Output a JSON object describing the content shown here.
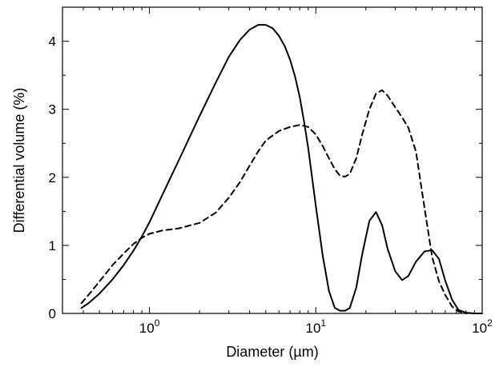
{
  "chart_data": {
    "type": "line",
    "title": "",
    "xlabel": "Diameter (µm)",
    "ylabel": "Differential volume (%)",
    "xscale": "log",
    "xlim": [
      0.3,
      100
    ],
    "ylim": [
      0,
      4.5
    ],
    "grid": false,
    "legend": "none",
    "xticks": [
      {
        "base": "10",
        "exp": "0",
        "value": 1
      },
      {
        "base": "10",
        "exp": "1",
        "value": 10
      },
      {
        "base": "10",
        "exp": "2",
        "value": 100
      }
    ],
    "yticks": [
      {
        "label": "0",
        "value": 0
      },
      {
        "label": "1",
        "value": 1
      },
      {
        "label": "2",
        "value": 2
      },
      {
        "label": "3",
        "value": 3
      },
      {
        "label": "4",
        "value": 4
      }
    ],
    "series": [
      {
        "style": "solid",
        "color": "#000000",
        "x": [
          0.39,
          0.43,
          0.5,
          0.6,
          0.7,
          0.8,
          0.9,
          1.0,
          1.2,
          1.5,
          2.0,
          2.5,
          3.0,
          3.5,
          4.0,
          4.5,
          5.0,
          5.5,
          6.0,
          6.5,
          7.0,
          7.5,
          8.0,
          8.5,
          9.0,
          10.0,
          11.0,
          12.0,
          13.0,
          14.0,
          15.0,
          16.0,
          17.5,
          19.0,
          21.0,
          23.0,
          25.0,
          27.0,
          30.0,
          33.0,
          36.0,
          40.0,
          45.0,
          50.0,
          55.0,
          60.0,
          66.0,
          72.0,
          80.0,
          90.0,
          100.0
        ],
        "y": [
          0.08,
          0.15,
          0.29,
          0.5,
          0.71,
          0.92,
          1.13,
          1.34,
          1.75,
          2.25,
          2.9,
          3.39,
          3.77,
          4.02,
          4.17,
          4.24,
          4.24,
          4.19,
          4.08,
          3.93,
          3.73,
          3.48,
          3.18,
          2.82,
          2.43,
          1.58,
          0.85,
          0.33,
          0.08,
          0.04,
          0.04,
          0.08,
          0.38,
          0.87,
          1.36,
          1.49,
          1.3,
          0.95,
          0.62,
          0.49,
          0.55,
          0.76,
          0.91,
          0.93,
          0.8,
          0.48,
          0.2,
          0.05,
          0.01,
          0.0,
          0.0
        ]
      },
      {
        "style": "dashed",
        "color": "#000000",
        "x": [
          0.39,
          0.45,
          0.52,
          0.6,
          0.7,
          0.8,
          0.9,
          1.0,
          1.2,
          1.5,
          2.0,
          2.5,
          3.0,
          3.5,
          4.0,
          4.5,
          5.0,
          6.0,
          7.0,
          8.0,
          9.0,
          10.0,
          11.0,
          12.0,
          13.0,
          14.0,
          15.0,
          16.0,
          17.5,
          19.0,
          21.0,
          23.0,
          25.0,
          27.0,
          30.0,
          33.0,
          36.0,
          40.0,
          45.0,
          50.0,
          55.0,
          60.0,
          66.0,
          72.0,
          80.0
        ],
        "y": [
          0.15,
          0.33,
          0.52,
          0.71,
          0.88,
          1.02,
          1.11,
          1.17,
          1.22,
          1.25,
          1.33,
          1.48,
          1.7,
          1.93,
          2.17,
          2.38,
          2.54,
          2.68,
          2.74,
          2.77,
          2.74,
          2.63,
          2.46,
          2.28,
          2.12,
          2.02,
          2.01,
          2.05,
          2.28,
          2.63,
          3.0,
          3.23,
          3.28,
          3.2,
          3.03,
          2.88,
          2.73,
          2.38,
          1.55,
          0.83,
          0.47,
          0.27,
          0.1,
          0.03,
          0.0
        ]
      }
    ]
  }
}
